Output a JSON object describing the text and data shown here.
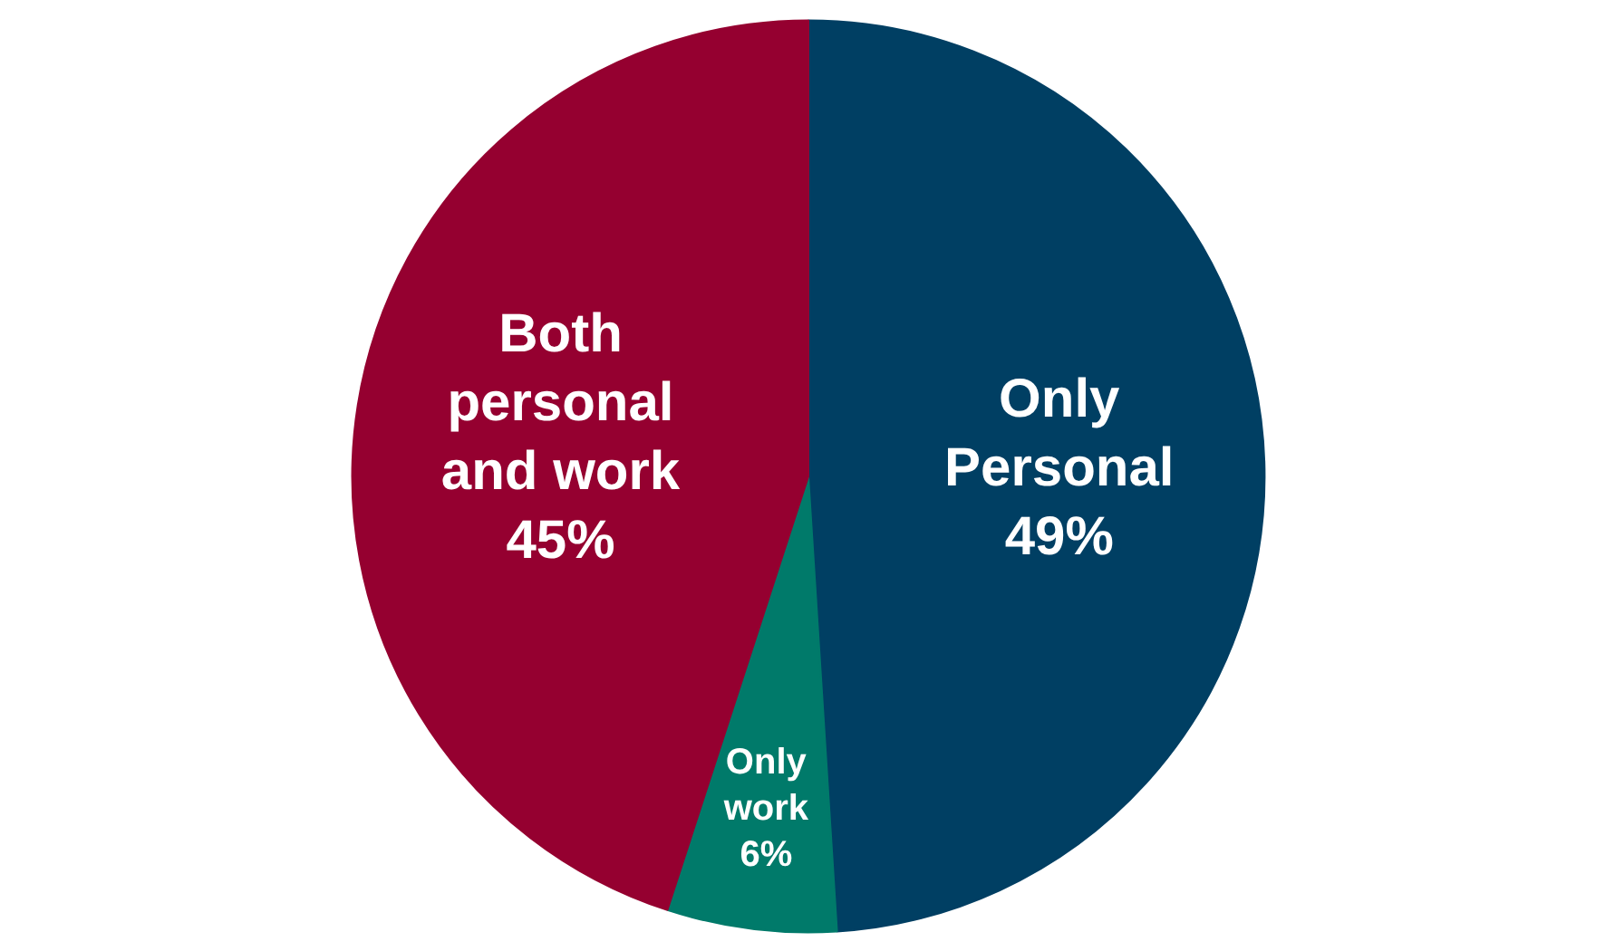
{
  "chart_data": {
    "type": "pie",
    "categories": [
      "Only Personal",
      "Only work",
      "Both personal and work"
    ],
    "values": [
      49,
      6,
      45
    ],
    "colors": [
      "#003f63",
      "#007a6a",
      "#950030"
    ],
    "value_labels": [
      "49%",
      "6%",
      "45%"
    ],
    "legend": false
  }
}
